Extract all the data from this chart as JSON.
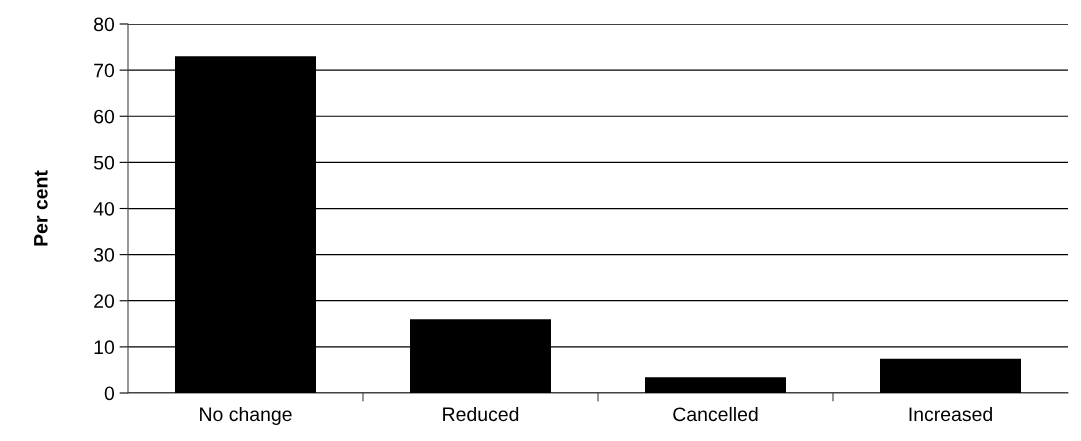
{
  "chart_data": {
    "type": "bar",
    "ylabel": "Per cent",
    "categories": [
      "No change",
      "Reduced",
      "Cancelled",
      "Increased"
    ],
    "series": [
      {
        "color": "#000000",
        "values": [
          73,
          16,
          3.4,
          7.4
        ]
      }
    ],
    "ylim": [
      0,
      80
    ],
    "yticks": [
      0,
      10,
      20,
      30,
      40,
      50,
      60,
      70,
      80
    ],
    "grid": "y",
    "legend": false
  }
}
